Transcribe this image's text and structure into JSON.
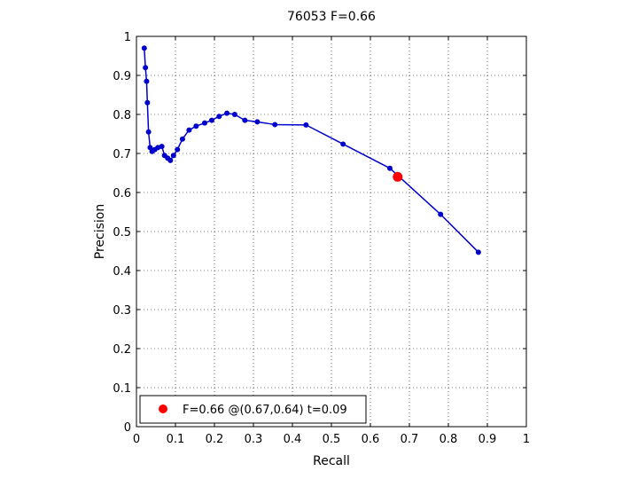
{
  "chart_data": {
    "type": "line",
    "title": "76053 F=0.66",
    "xlabel": "Recall",
    "ylabel": "Precision",
    "xlim": [
      0,
      1
    ],
    "ylim": [
      0,
      1
    ],
    "grid": true,
    "x_ticks": [
      "0",
      "0.1",
      "0.2",
      "0.3",
      "0.4",
      "0.5",
      "0.6",
      "0.7",
      "0.8",
      "0.9",
      "1"
    ],
    "y_ticks": [
      "0",
      "0.1",
      "0.2",
      "0.3",
      "0.4",
      "0.5",
      "0.6",
      "0.7",
      "0.8",
      "0.9",
      "1"
    ],
    "series": [
      {
        "color": "#0000cc",
        "points": [
          [
            0.02,
            0.97
          ],
          [
            0.023,
            0.92
          ],
          [
            0.026,
            0.885
          ],
          [
            0.028,
            0.83
          ],
          [
            0.031,
            0.755
          ],
          [
            0.035,
            0.715
          ],
          [
            0.04,
            0.705
          ],
          [
            0.047,
            0.71
          ],
          [
            0.055,
            0.715
          ],
          [
            0.065,
            0.718
          ],
          [
            0.072,
            0.695
          ],
          [
            0.08,
            0.688
          ],
          [
            0.087,
            0.682
          ],
          [
            0.095,
            0.695
          ],
          [
            0.105,
            0.71
          ],
          [
            0.118,
            0.737
          ],
          [
            0.135,
            0.76
          ],
          [
            0.153,
            0.77
          ],
          [
            0.175,
            0.778
          ],
          [
            0.193,
            0.785
          ],
          [
            0.212,
            0.795
          ],
          [
            0.232,
            0.803
          ],
          [
            0.252,
            0.8
          ],
          [
            0.278,
            0.785
          ],
          [
            0.31,
            0.781
          ],
          [
            0.355,
            0.774
          ],
          [
            0.435,
            0.773
          ],
          [
            0.53,
            0.724
          ],
          [
            0.65,
            0.662
          ],
          [
            0.78,
            0.544
          ],
          [
            0.877,
            0.447
          ]
        ]
      }
    ],
    "highlight": {
      "x": 0.67,
      "y": 0.64,
      "color": "#ff0000"
    },
    "legend": {
      "position": "bottom-left",
      "label": "F=0.66 @(0.67,0.64) t=0.09"
    }
  }
}
